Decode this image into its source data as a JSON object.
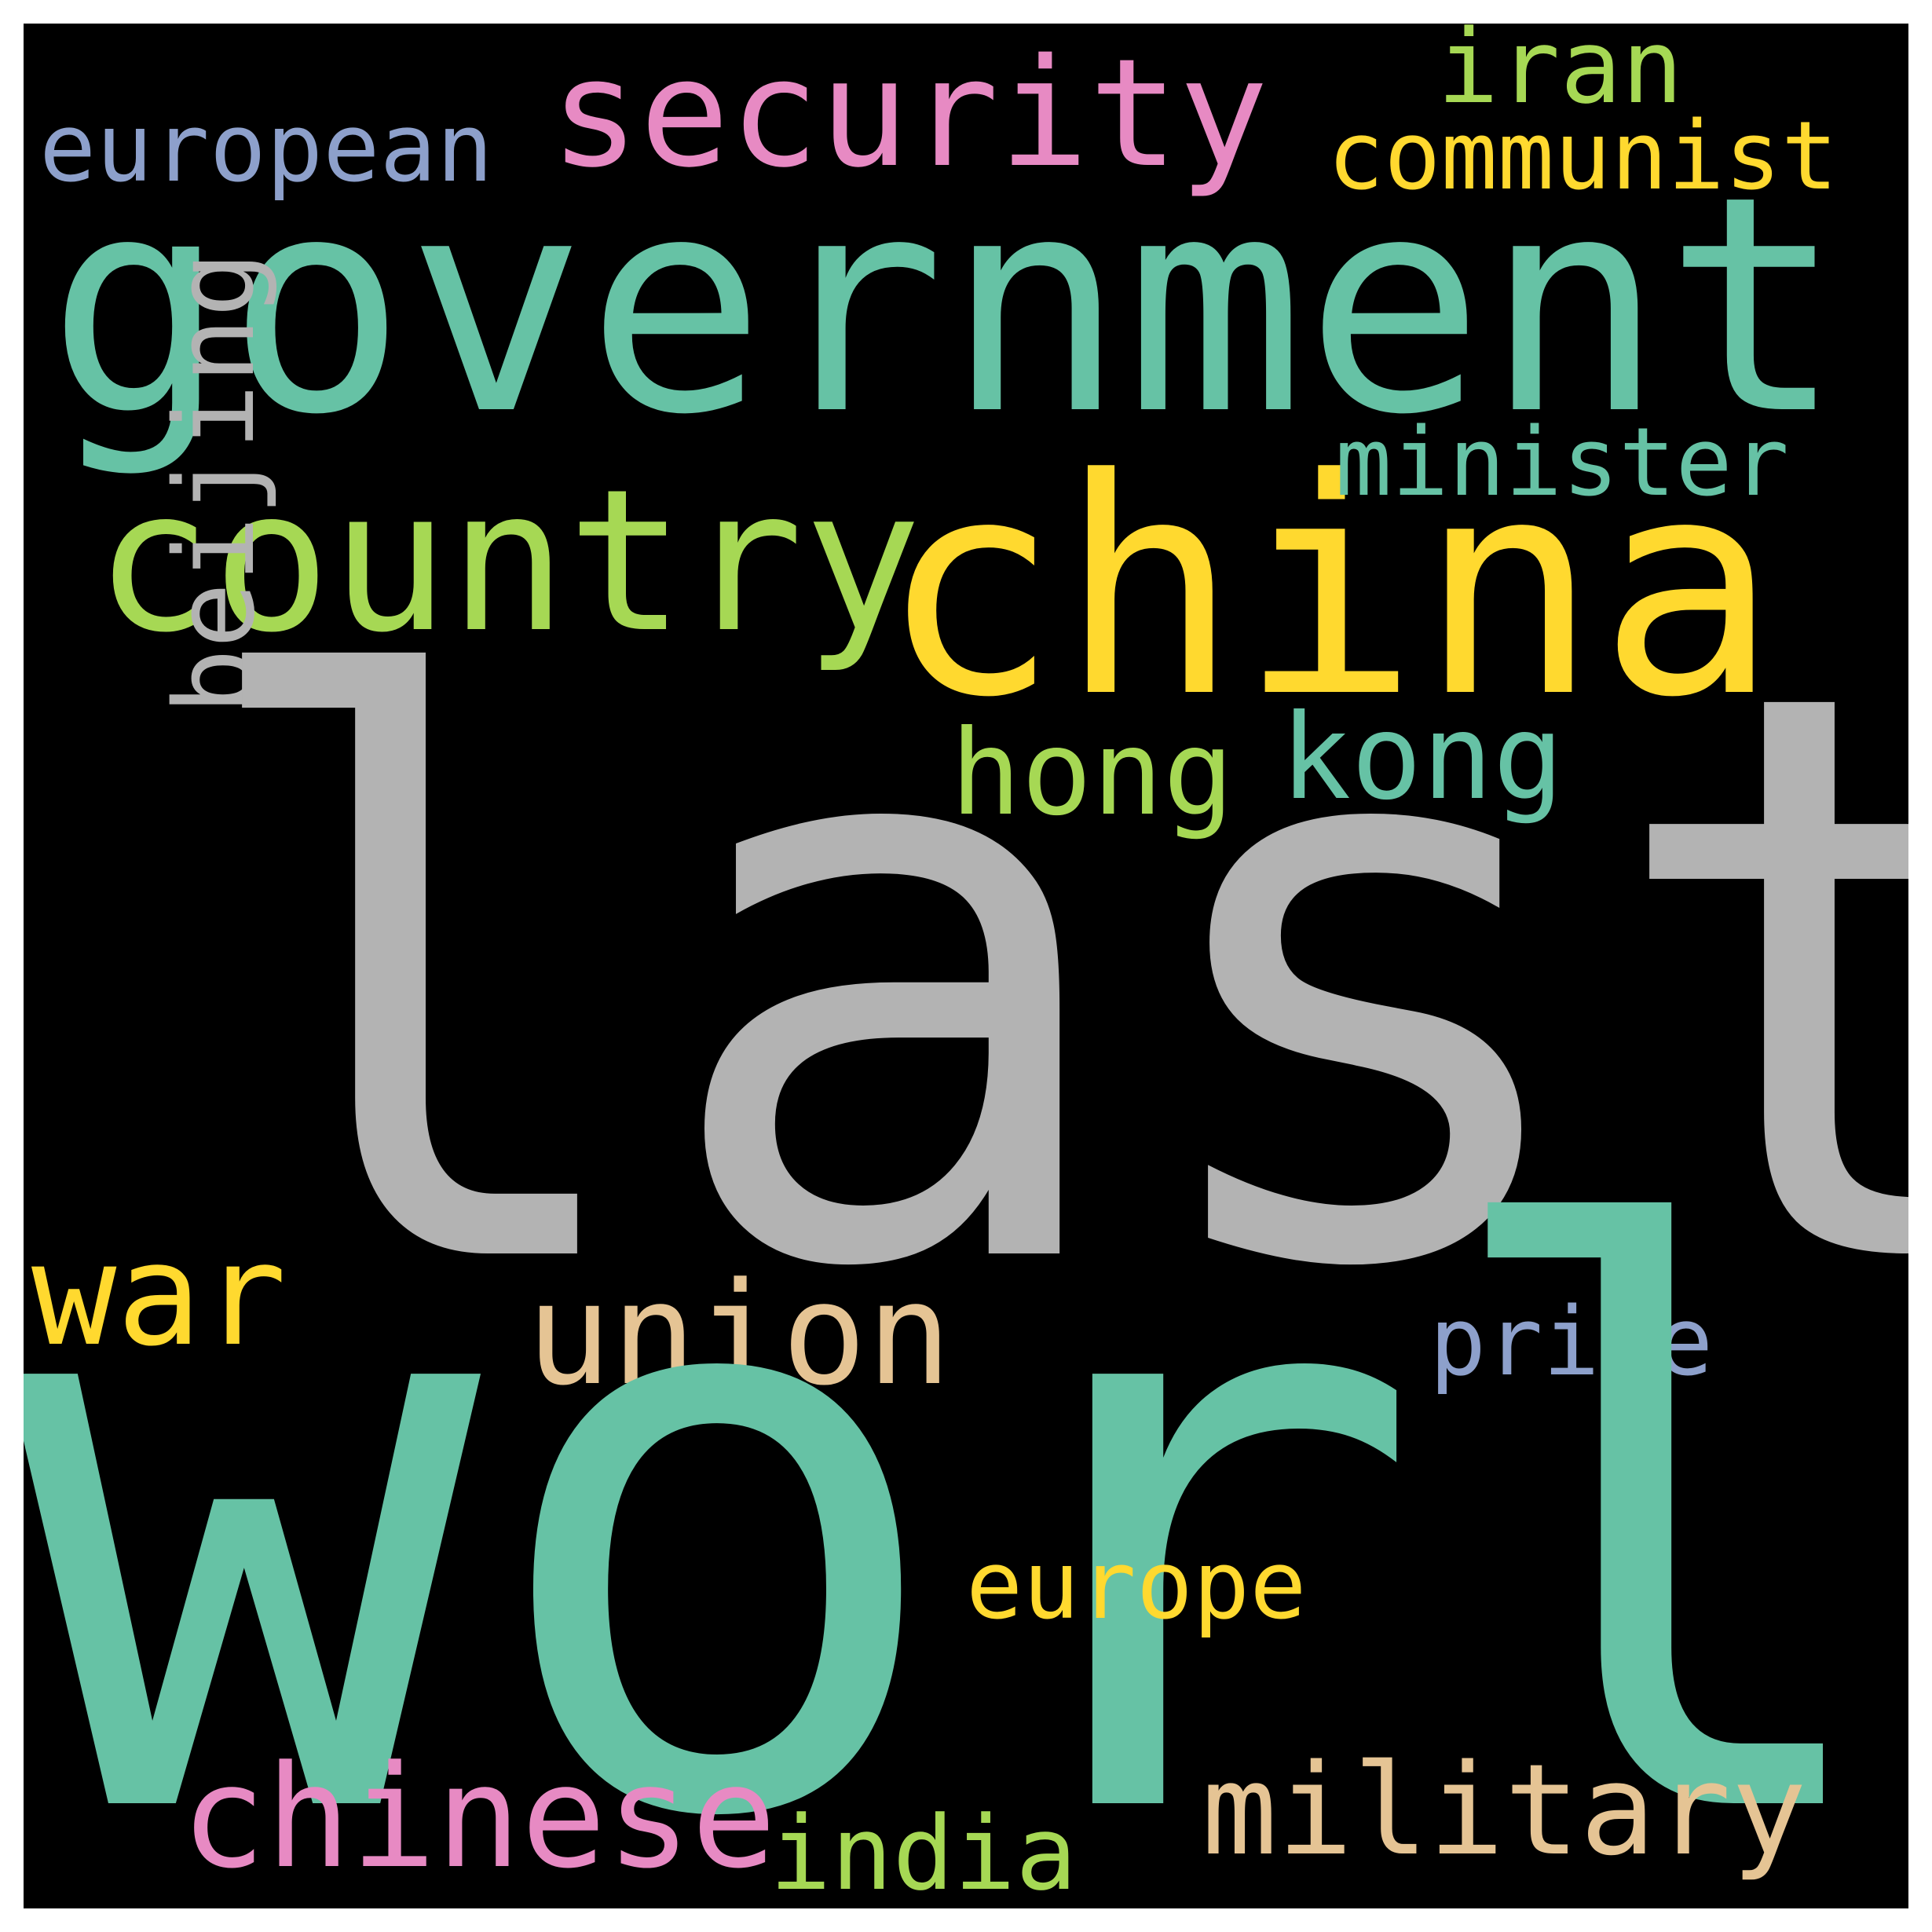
{
  "words": {
    "last": "last",
    "world": "world",
    "government": "government",
    "china": "china",
    "country": "country",
    "security": "security",
    "european": "european",
    "iran": "iran",
    "communist": "communist",
    "minister": "minister",
    "hong": "hong",
    "kong": "kong",
    "beijing": "beijing",
    "war": "war",
    "union": "union",
    "prime": "prime",
    "europe": "europe",
    "chinese": "chinese",
    "military": "military",
    "india": "india"
  },
  "colors": {
    "background": "#000000",
    "last": "#b3b3b3",
    "world": "#66c2a5",
    "government": "#66c2a5",
    "china": "#ffd92f",
    "country": "#a6d854",
    "security": "#e78ac3",
    "european": "#8da0cb",
    "iran": "#a6d854",
    "communist": "#ffd92f",
    "minister": "#66c2a5",
    "hong": "#a6d854",
    "kong": "#66c2a5",
    "beijing": "#b3b3b3",
    "war": "#ffd92f",
    "union": "#e5c494",
    "prime": "#8da0cb",
    "europe": "#ffd92f",
    "chinese": "#e78ac3",
    "military": "#e5c494",
    "india": "#a6d854"
  }
}
